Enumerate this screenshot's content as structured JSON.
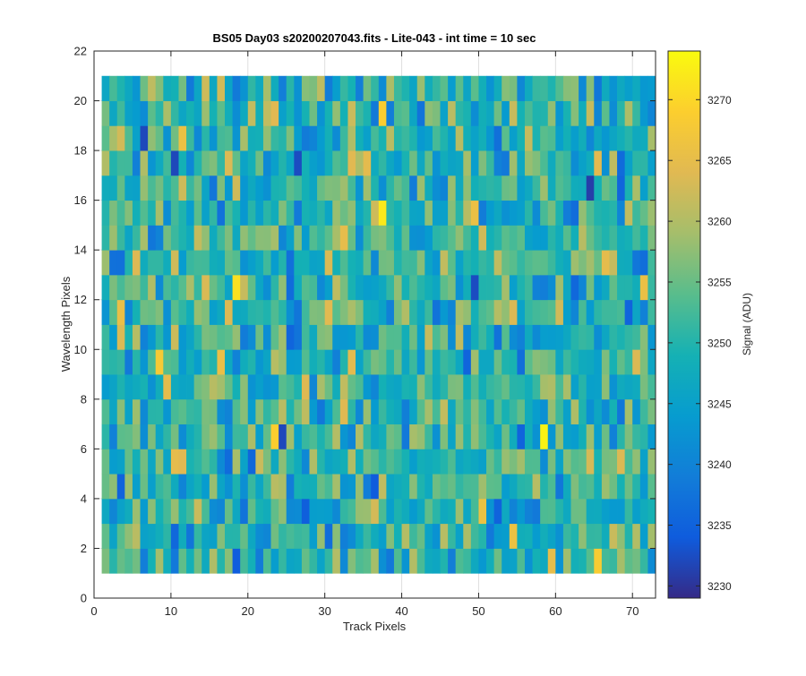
{
  "chart_data": {
    "type": "heatmap",
    "title": "BS05 Day03  s20200207043.fits - Lite-043 - int time = 10 sec",
    "xlabel": "Track Pixels",
    "ylabel": "Wavelength Pixels",
    "xlim": [
      0,
      73
    ],
    "ylim": [
      0,
      22
    ],
    "xticks": [
      "0",
      "10",
      "20",
      "30",
      "40",
      "50",
      "60",
      "70"
    ],
    "yticks": [
      "0",
      "2",
      "4",
      "6",
      "8",
      "10",
      "12",
      "14",
      "16",
      "18",
      "20",
      "22"
    ],
    "grid": true,
    "columns": 72,
    "rows": 20,
    "colorbar": {
      "label": "Signal (ADU)",
      "clim": [
        3229,
        3274
      ],
      "ticks": [
        "3230",
        "3235",
        "3240",
        "3245",
        "3250",
        "3255",
        "3260",
        "3265",
        "3270"
      ],
      "colormap": "parula"
    },
    "value_summary": {
      "typical": 3250,
      "notable_high": [
        {
          "x": 37.5,
          "y": 15.5,
          "value": 3272
        },
        {
          "x": 58.5,
          "y": 6.5,
          "value": 3273
        },
        {
          "x": 18.5,
          "y": 12.5,
          "value": 3271
        },
        {
          "x": 8.5,
          "y": 9.5,
          "value": 3268
        }
      ],
      "notable_low": [
        {
          "x": 24.5,
          "y": 6.5,
          "value": 3232
        },
        {
          "x": 64.5,
          "y": 16.5,
          "value": 3231
        },
        {
          "x": 6.5,
          "y": 18.5,
          "value": 3232
        }
      ]
    }
  },
  "colors": {
    "axis": "#262626",
    "grid": "#dfdfdf",
    "background": "#ffffff"
  }
}
